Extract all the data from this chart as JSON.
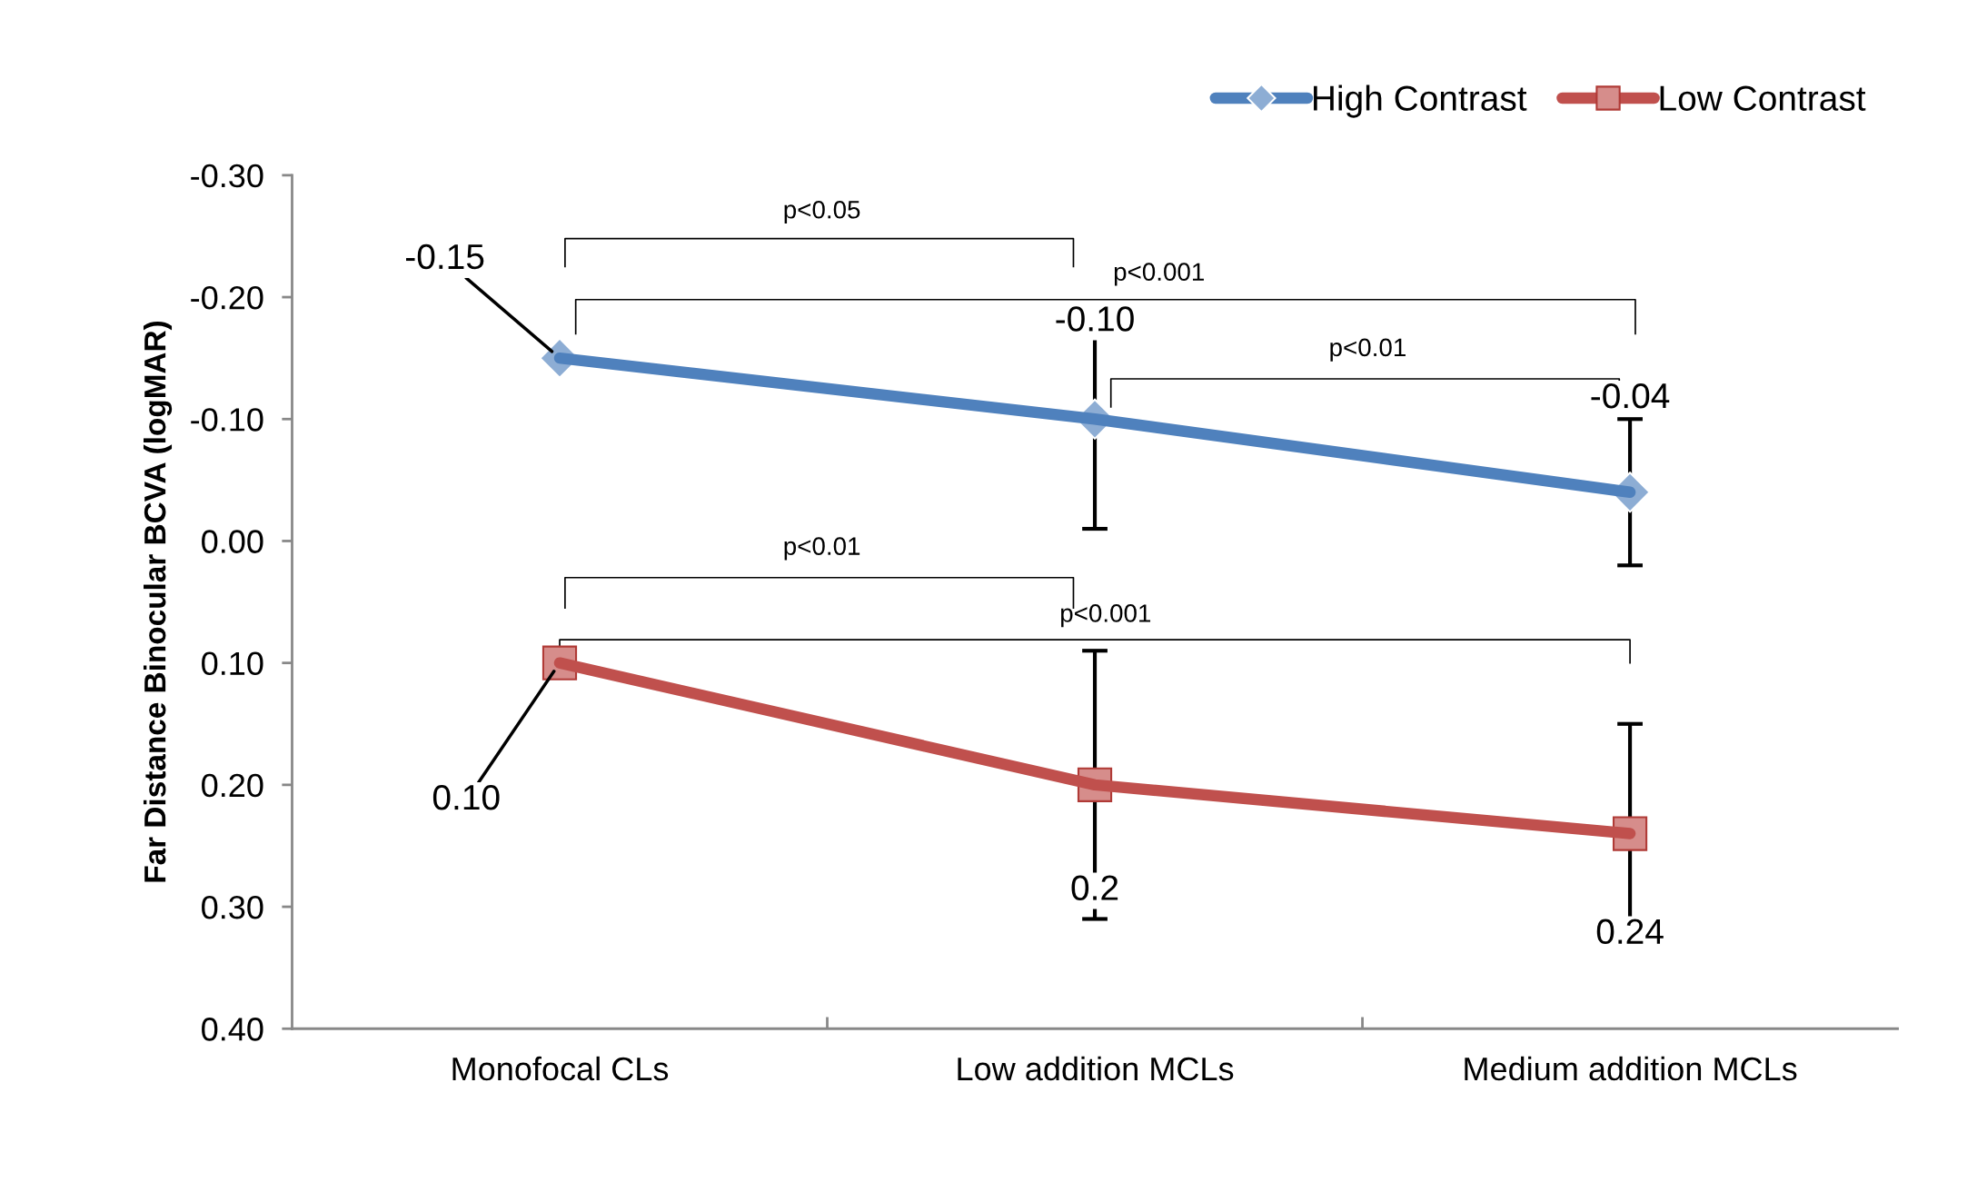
{
  "chart_data": {
    "type": "line",
    "ylabel": "Far Distance Binocular BCVA (logMAR)",
    "categories": [
      "Monofocal CLs",
      "Low addition MCLs",
      "Medium addition MCLs"
    ],
    "series": [
      {
        "name": "High Contrast",
        "color": "#4f81bd",
        "marker": "diamond",
        "values": [
          -0.15,
          -0.1,
          -0.04
        ],
        "errors": [
          null,
          0.09,
          0.06
        ],
        "value_labels": [
          "-0.15",
          "-0.10",
          "-0.04"
        ]
      },
      {
        "name": "Low Contrast",
        "color": "#c0504d",
        "marker": "square",
        "values": [
          0.1,
          0.2,
          0.24
        ],
        "errors": [
          null,
          0.11,
          0.09
        ],
        "value_labels": [
          "0.10",
          "0.2",
          "0.24"
        ]
      }
    ],
    "ylim": [
      0.4,
      -0.3
    ],
    "yticks": [
      {
        "value": 0.4,
        "label": "0.40"
      },
      {
        "value": 0.3,
        "label": "0.30"
      },
      {
        "value": 0.2,
        "label": "0.20"
      },
      {
        "value": 0.1,
        "label": "0.10"
      },
      {
        "value": 0.0,
        "label": "0.00"
      },
      {
        "value": -0.1,
        "label": "-0.10"
      },
      {
        "value": -0.2,
        "label": "-0.20"
      },
      {
        "value": -0.3,
        "label": "-0.30"
      }
    ],
    "annotations": [
      "p<0.05",
      "p<0.001",
      "p<0.01",
      "p<0.01",
      "p<0.001"
    ],
    "legend": "top right",
    "grid": false
  }
}
